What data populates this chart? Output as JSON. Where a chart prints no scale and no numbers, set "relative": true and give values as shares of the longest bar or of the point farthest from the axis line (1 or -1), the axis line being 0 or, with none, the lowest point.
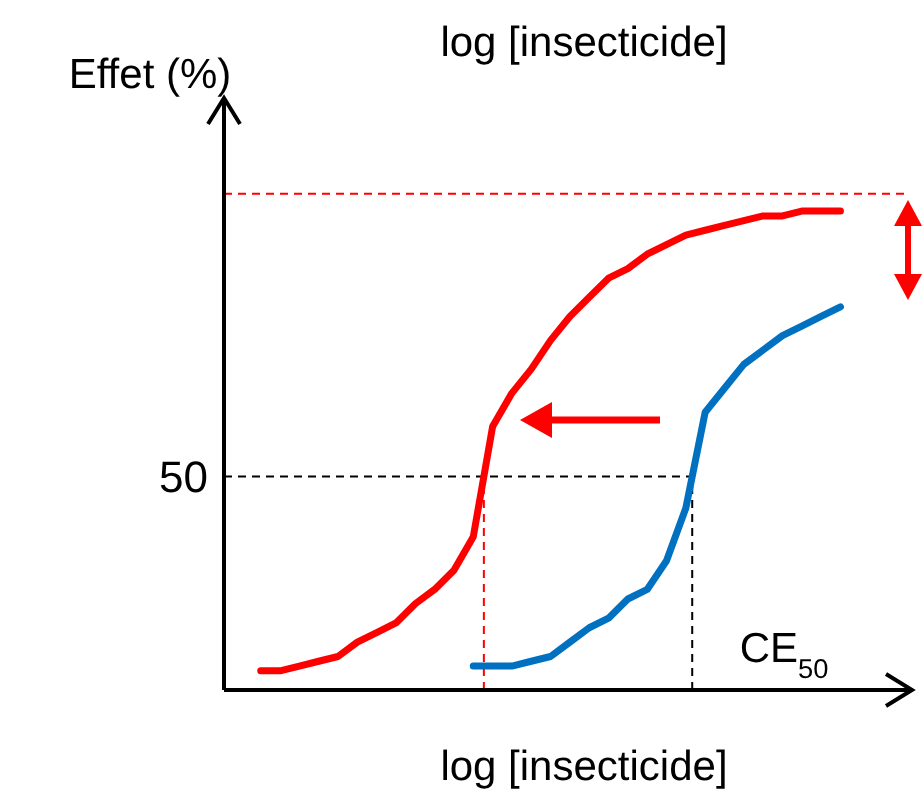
{
  "chart_data": {
    "type": "line",
    "title": "log  [insecticide]",
    "xlabel": "log  [insecticide]",
    "ylabel": "Effet (%)",
    "relative": true,
    "annotations": [
      "50",
      "CE$_{50}$"
    ],
    "categories": [
      null,
      null,
      null,
      null,
      null,
      null,
      null,
      null,
      null,
      null,
      null,
      null,
      null,
      null,
      null,
      null,
      null,
      null,
      null,
      null,
      null,
      null,
      null,
      null,
      null,
      null,
      null,
      null,
      null,
      null,
      null
    ],
    "marker": "none",
    "line_style": "solid",
    "series": [
      {
        "color": "#ff0000",
        "values": [
          0.04,
          0.04,
          0.05,
          0.06,
          0.07,
          0.1,
          0.12,
          0.14,
          0.18,
          0.21,
          0.25,
          0.32,
          0.55,
          0.62,
          0.67,
          0.73,
          0.78,
          0.82,
          0.86,
          0.88,
          0.91,
          0.93,
          0.95,
          0.96,
          0.97,
          0.98,
          0.99,
          0.99,
          1,
          1,
          1
        ]
      },
      {
        "color": "#0070c0",
        "values": [
          null,
          null,
          null,
          null,
          null,
          null,
          null,
          null,
          null,
          null,
          null,
          0.05,
          0.05,
          0.05,
          0.06,
          0.07,
          0.1,
          0.13,
          0.15,
          0.19,
          0.21,
          0.27,
          0.38,
          0.58,
          0.63,
          0.68,
          0.71,
          0.74,
          0.76,
          0.78,
          0.8
        ]
      }
    ],
    "ref_lines": [
      {
        "axis": "y",
        "value": 0.446,
        "color": "#000000",
        "line_style": "dashed"
      },
      {
        "axis": "y",
        "value": 1.036,
        "color": "#ff0000",
        "line_style": "dashed"
      }
    ]
  }
}
